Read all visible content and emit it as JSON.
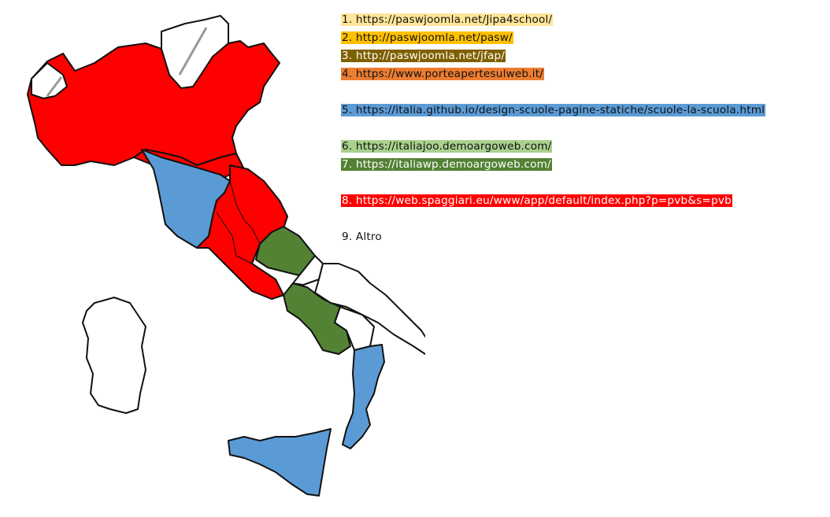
{
  "legend": [
    {
      "text": "1. https://paswjoomla.net/Jipa4school/",
      "color": "#ffe699"
    },
    {
      "text": "2. http://paswjoomla.net/pasw/",
      "color": "#ffc000"
    },
    {
      "text": "3. http://paswjoomla.net/jfap/",
      "color": "#7f6000"
    },
    {
      "text": "4. https://www.porteapertesulweb.it/",
      "color": "#ed7d31"
    },
    {
      "text": "5. https://italia.github.io/design-scuole-pagine-statiche/scuole-la-scuola.html",
      "color": "#5b9bd5"
    },
    {
      "text": "6. https://italiajoo.demoargoweb.com/",
      "color": "#a9d18e"
    },
    {
      "text": "7. https://italiawp.demoargoweb.com/",
      "color": "#548235"
    },
    {
      "text": "8. https://web.spaggiari.eu/www/app/default/index.php?p=pvb&s=pvb",
      "color": "#ff0000"
    },
    {
      "text": "9. Altro",
      "color": "#ffffff"
    }
  ],
  "colors": {
    "red": "#ff0000",
    "blue": "#5b9bd5",
    "green": "#548235",
    "white": "#ffffff"
  }
}
